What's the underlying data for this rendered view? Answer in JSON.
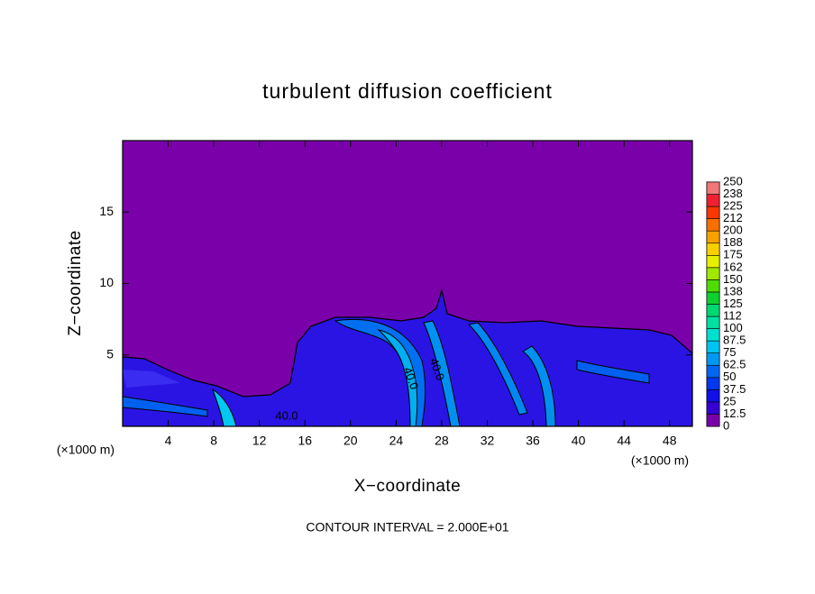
{
  "chart_data": {
    "type": "contour",
    "title": "turbulent diffusion coefficient",
    "x_label": "X−coordinate",
    "y_label": "Z−coordinate",
    "x_unit": "(×1000 m)",
    "footnote": "CONTOUR INTERVAL = 2.000E+01",
    "xlim": [
      0,
      50
    ],
    "ylim": [
      0,
      20
    ],
    "xticks": [
      4,
      8,
      12,
      16,
      20,
      24,
      28,
      32,
      36,
      40,
      44,
      48
    ],
    "yticks": [
      5,
      10,
      15
    ],
    "contour_labels": [
      "40.0",
      "40.0",
      "40.0"
    ],
    "colorbar": {
      "levels": [
        0,
        12.5,
        25,
        37.5,
        50,
        62.5,
        75,
        87.5,
        100,
        {
          "value": 112.5,
          "label": "112"
        },
        125,
        {
          "value": 137.5,
          "label": "138"
        },
        150,
        {
          "value": 162.5,
          "label": "162"
        },
        175,
        {
          "value": 187.5,
          "label": "188"
        },
        200,
        {
          "value": 212.5,
          "label": "212"
        },
        225,
        {
          "value": 237.5,
          "label": "238"
        },
        250
      ],
      "colors": [
        "#7800a8",
        "#3400d4",
        "#1010e8",
        "#0038f0",
        "#0068f0",
        "#0098f0",
        "#00c4f0",
        "#00e0d0",
        "#00e0a0",
        "#00d870",
        "#10d030",
        "#50dc00",
        "#a0e800",
        "#e8f000",
        "#f8d000",
        "#f8a000",
        "#f87000",
        "#f83800",
        "#f02030",
        "#f07878"
      ]
    }
  }
}
